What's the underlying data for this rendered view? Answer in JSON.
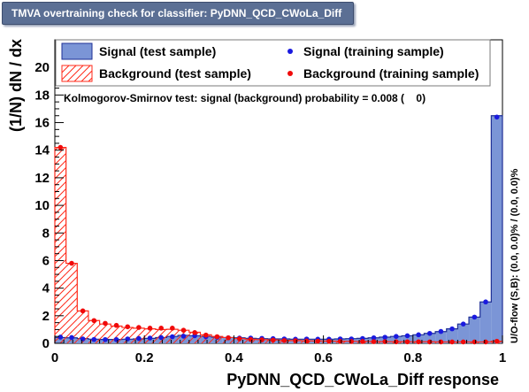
{
  "window": {
    "title": "TMVA overtraining check for classifier: PyDNN_QCD_CWoLa_Diff"
  },
  "chart_data": {
    "type": "bar",
    "xlabel": "PyDNN_QCD_CWoLa_Diff response",
    "ylabel": "(1/N) dN / dx",
    "xlim": [
      0,
      1
    ],
    "ylim": [
      0,
      22
    ],
    "x_ticks": [
      "0",
      "0.2",
      "0.4",
      "0.6",
      "0.8",
      "1"
    ],
    "y_ticks": [
      "0",
      "2",
      "4",
      "6",
      "8",
      "10",
      "12",
      "14",
      "16",
      "18",
      "20"
    ],
    "bins": 40,
    "legend": [
      "Signal (test sample)",
      "Signal (training sample)",
      "Background (test sample)",
      "Background (training sample)"
    ],
    "ks_text": "Kolmogorov-Smirnov test: signal (background) probability = 0.008 (    0)",
    "overflow_text": "U/O-flow (S,B): (0.0, 0.0)% / (0.0, 0.0)%",
    "colors": {
      "signal_fill": "#7b95d6",
      "signal_line": "#1e2f96",
      "signal_marker": "#1a1adf",
      "background_hatch": "#ff2a1a",
      "background_marker": "#f00a0a",
      "title_bar": "#5b6f94"
    },
    "series": [
      {
        "name": "Signal (test sample)",
        "values": [
          0.42,
          0.4,
          0.35,
          0.3,
          0.28,
          0.28,
          0.3,
          0.32,
          0.36,
          0.42,
          0.5,
          0.58,
          0.55,
          0.5,
          0.45,
          0.42,
          0.4,
          0.36,
          0.34,
          0.32,
          0.32,
          0.3,
          0.3,
          0.3,
          0.3,
          0.32,
          0.34,
          0.36,
          0.4,
          0.45,
          0.5,
          0.55,
          0.62,
          0.72,
          0.85,
          1.05,
          1.4,
          1.9,
          3.0,
          16.5
        ]
      },
      {
        "name": "Signal (training sample)",
        "values": [
          0.45,
          0.42,
          0.32,
          0.28,
          0.27,
          0.27,
          0.32,
          0.35,
          0.38,
          0.42,
          0.48,
          0.52,
          0.55,
          0.48,
          0.44,
          0.4,
          0.38,
          0.38,
          0.36,
          0.34,
          0.32,
          0.3,
          0.31,
          0.3,
          0.3,
          0.32,
          0.32,
          0.35,
          0.4,
          0.44,
          0.5,
          0.55,
          0.62,
          0.72,
          0.86,
          1.05,
          1.4,
          1.9,
          3.0,
          16.4
        ]
      },
      {
        "name": "Background (test sample)",
        "values": [
          14.2,
          5.8,
          2.35,
          1.65,
          1.4,
          1.25,
          1.15,
          1.1,
          1.05,
          1.0,
          1.02,
          0.95,
          0.8,
          0.62,
          0.5,
          0.42,
          0.35,
          0.3,
          0.27,
          0.25,
          0.22,
          0.2,
          0.18,
          0.17,
          0.16,
          0.15,
          0.14,
          0.14,
          0.13,
          0.12,
          0.12,
          0.11,
          0.11,
          0.11,
          0.1,
          0.1,
          0.1,
          0.1,
          0.1,
          0.15
        ]
      },
      {
        "name": "Background (training sample)",
        "values": [
          14.2,
          5.8,
          2.35,
          1.65,
          1.45,
          1.3,
          1.2,
          1.15,
          1.1,
          1.1,
          1.1,
          0.95,
          0.78,
          0.6,
          0.48,
          0.4,
          0.33,
          0.28,
          0.25,
          0.23,
          0.2,
          0.19,
          0.17,
          0.16,
          0.15,
          0.14,
          0.13,
          0.13,
          0.12,
          0.12,
          0.11,
          0.11,
          0.11,
          0.1,
          0.1,
          0.1,
          0.1,
          0.1,
          0.1,
          0.15
        ]
      }
    ]
  }
}
